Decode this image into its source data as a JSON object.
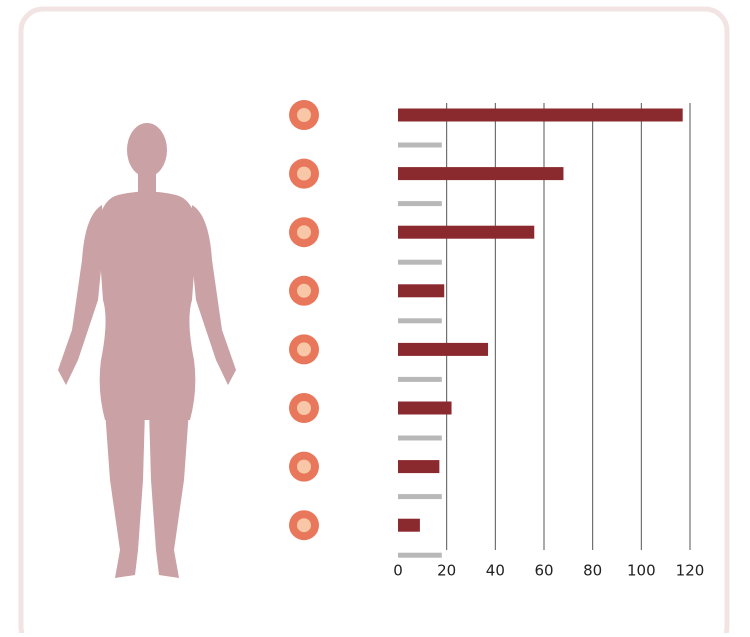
{
  "chart_data": {
    "type": "barh",
    "categories": [
      null,
      null,
      null,
      null,
      null,
      null,
      null,
      null
    ],
    "series": [
      {
        "color": "#8b2a2e",
        "values": [
          117,
          68,
          56,
          19,
          37,
          22,
          17,
          9
        ]
      },
      {
        "color": "#b8b8b8",
        "values": [
          18,
          18,
          18,
          18,
          18,
          18,
          18,
          18
        ]
      }
    ],
    "xlim": [
      0,
      120
    ],
    "xticks": [
      0,
      20,
      40,
      60,
      80,
      100,
      120
    ],
    "grid": true
  }
}
